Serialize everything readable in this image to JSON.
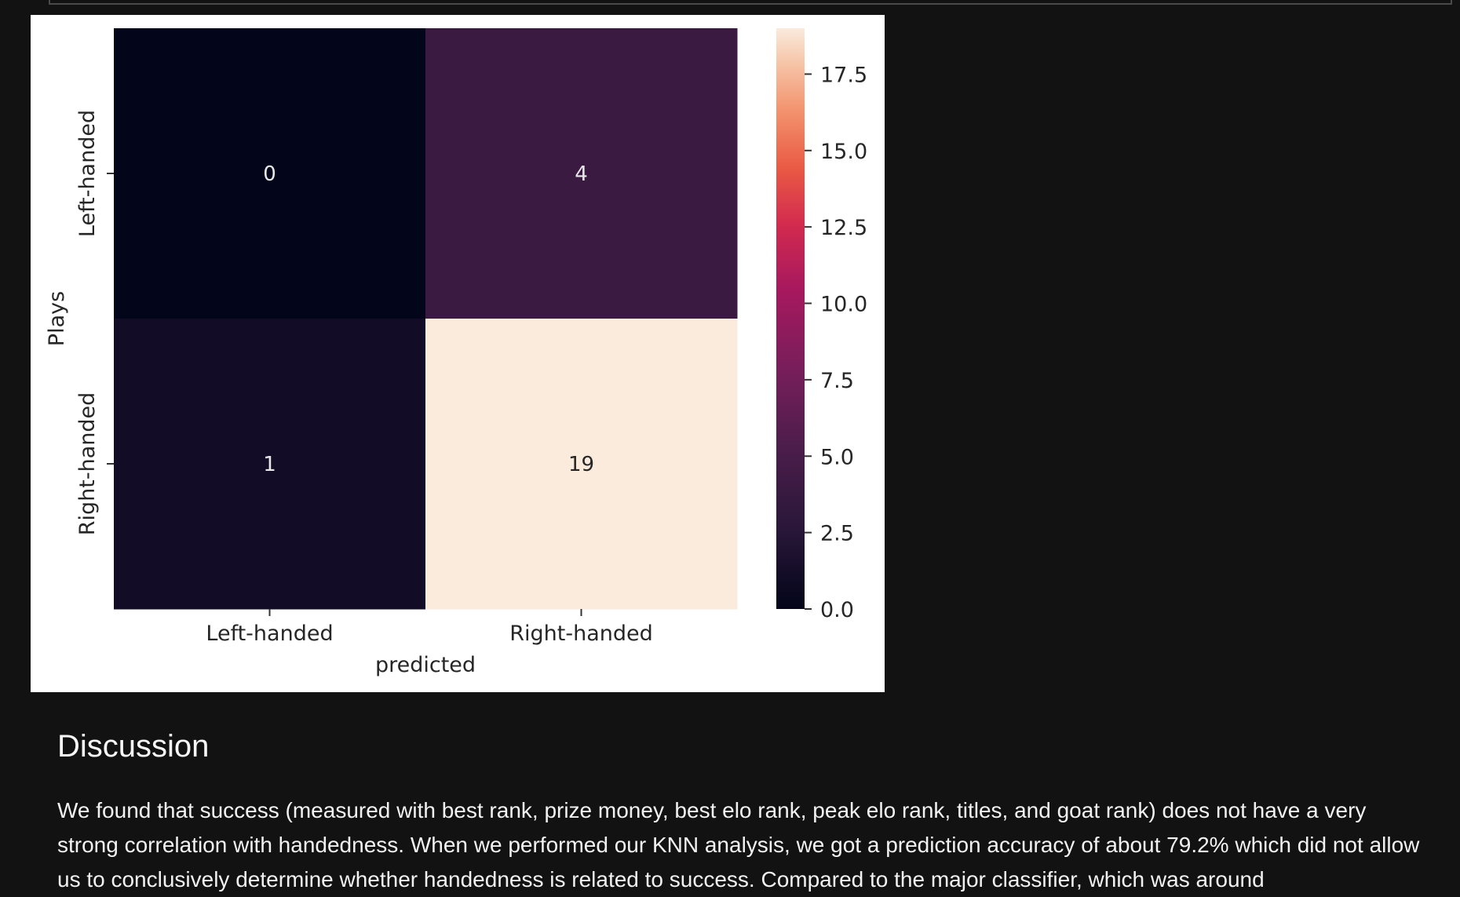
{
  "chart_data": {
    "type": "heatmap",
    "ylabel": "Plays",
    "xlabel": "predicted",
    "x_categories": [
      "Left-handed",
      "Right-handed"
    ],
    "y_categories": [
      "Left-handed",
      "Right-handed"
    ],
    "values": [
      [
        0,
        4
      ],
      [
        1,
        19
      ]
    ],
    "colorbar": {
      "range": [
        0,
        19
      ],
      "ticks": [
        0.0,
        2.5,
        5.0,
        7.5,
        10.0,
        12.5,
        15.0,
        17.5
      ],
      "tick_labels": [
        "0.0",
        "2.5",
        "5.0",
        "7.5",
        "10.0",
        "12.5",
        "15.0",
        "17.5"
      ],
      "colormap": "rocket"
    }
  },
  "discussion": {
    "heading": "Discussion",
    "paragraph": "We found that success (measured with best rank, prize money, best elo rank, peak elo rank, titles, and goat rank) does not have a very strong correlation with handedness. When we performed our KNN analysis, we got a prediction accuracy of about 79.2% which did not allow us to conclusively determine whether handedness is related to success. Compared to the major classifier, which was around"
  },
  "colors": {
    "page_background": "#121212",
    "figure_background": "#ffffff",
    "text": "#f2f2f2"
  }
}
